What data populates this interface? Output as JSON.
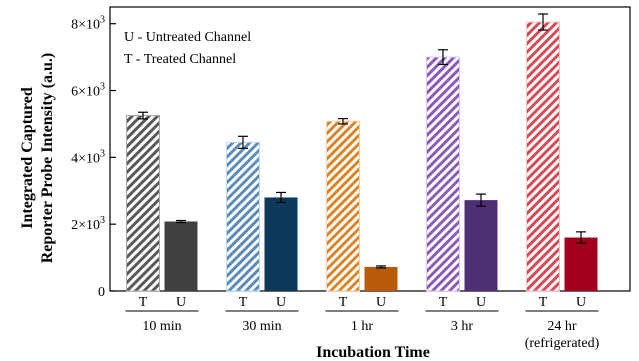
{
  "chart_data": {
    "type": "bar",
    "xlabel": "Incubation Time",
    "ylabel_line1": "Integrated Captured",
    "ylabel_line2": "Reporter Probe Intensity (a.u.)",
    "ylim": [
      0,
      8500
    ],
    "yticks": [
      {
        "value": 0,
        "mantissa": "0",
        "exp": ""
      },
      {
        "value": 2000,
        "mantissa": "2×10",
        "exp": "3"
      },
      {
        "value": 4000,
        "mantissa": "4×10",
        "exp": "3"
      },
      {
        "value": 6000,
        "mantissa": "6×10",
        "exp": "3"
      },
      {
        "value": 8000,
        "mantissa": "8×10",
        "exp": "3"
      }
    ],
    "legend": [
      "U - Untreated Channel",
      "T - Treated Channel"
    ],
    "groups": [
      {
        "label": "10 min",
        "note": "",
        "treated": 5250,
        "treated_err": 100,
        "untreated": 2080,
        "untreated_err": 30,
        "treated_color": "#a6a6a6",
        "untreated_color": "#404040",
        "hatch_color": "#595959"
      },
      {
        "label": "30 min",
        "note": "",
        "treated": 4450,
        "treated_err": 180,
        "untreated": 2800,
        "untreated_err": 150,
        "treated_color": "#bdd7ee",
        "untreated_color": "#0d3a5c",
        "hatch_color": "#5b8db8"
      },
      {
        "label": "1 hr",
        "note": "",
        "treated": 5080,
        "treated_err": 80,
        "untreated": 720,
        "untreated_err": 30,
        "treated_color": "#f8cfa0",
        "untreated_color": "#b85a0a",
        "hatch_color": "#d9862b"
      },
      {
        "label": "3 hr",
        "note": "",
        "treated": 7000,
        "treated_err": 220,
        "untreated": 2720,
        "untreated_err": 180,
        "treated_color": "#d9c6ea",
        "untreated_color": "#4f2f73",
        "hatch_color": "#8a5cb8"
      },
      {
        "label": "24 hr",
        "note": "(refrigerated)",
        "treated": 8050,
        "treated_err": 240,
        "untreated": 1600,
        "untreated_err": 170,
        "treated_color": "#f4c0c4",
        "untreated_color": "#a3001e",
        "hatch_color": "#d64a58"
      }
    ],
    "sub_labels": [
      "T",
      "U"
    ]
  }
}
